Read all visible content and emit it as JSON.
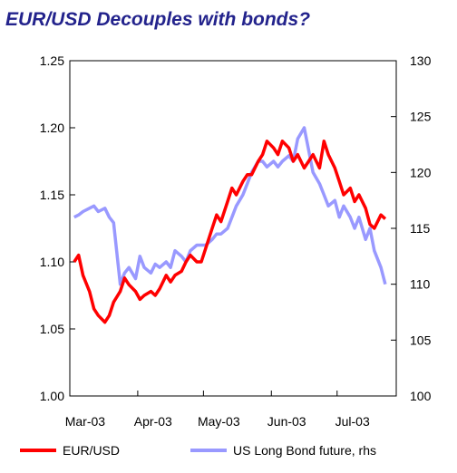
{
  "chart_data": {
    "type": "line",
    "title": "EUR/USD Decouples with bonds?",
    "x_tick_labels": [
      "Mar-03",
      "Apr-03",
      "May-03",
      "Jun-03",
      "Jul-03"
    ],
    "y_left": {
      "ylim": [
        1.0,
        1.25
      ],
      "ticks": [
        "1.00",
        "1.05",
        "1.10",
        "1.15",
        "1.20",
        "1.25"
      ]
    },
    "y_right": {
      "ylim": [
        100,
        130
      ],
      "ticks": [
        "100",
        "105",
        "110",
        "115",
        "120",
        "125",
        "130"
      ]
    },
    "grid": false,
    "legend_position": "bottom",
    "series": [
      {
        "name": "EUR/USD",
        "axis": "left",
        "color": "#ff0000",
        "x": [
          "2003-03-03",
          "2003-03-05",
          "2003-03-07",
          "2003-03-10",
          "2003-03-12",
          "2003-03-14",
          "2003-03-17",
          "2003-03-19",
          "2003-03-21",
          "2003-03-24",
          "2003-03-26",
          "2003-03-28",
          "2003-03-31",
          "2003-04-02",
          "2003-04-04",
          "2003-04-07",
          "2003-04-09",
          "2003-04-11",
          "2003-04-14",
          "2003-04-16",
          "2003-04-18",
          "2003-04-21",
          "2003-04-23",
          "2003-04-25",
          "2003-04-28",
          "2003-04-30",
          "2003-05-02",
          "2003-05-05",
          "2003-05-07",
          "2003-05-09",
          "2003-05-12",
          "2003-05-14",
          "2003-05-16",
          "2003-05-19",
          "2003-05-21",
          "2003-05-23",
          "2003-05-26",
          "2003-05-28",
          "2003-05-30",
          "2003-06-02",
          "2003-06-04",
          "2003-06-06",
          "2003-06-09",
          "2003-06-11",
          "2003-06-13",
          "2003-06-16",
          "2003-06-18",
          "2003-06-20",
          "2003-06-23",
          "2003-06-25",
          "2003-06-27",
          "2003-06-30",
          "2003-07-02",
          "2003-07-04",
          "2003-07-07",
          "2003-07-09",
          "2003-07-11",
          "2003-07-14",
          "2003-07-16",
          "2003-07-18",
          "2003-07-21",
          "2003-07-23"
        ],
        "values": [
          1.1,
          1.105,
          1.09,
          1.078,
          1.065,
          1.06,
          1.055,
          1.06,
          1.07,
          1.078,
          1.088,
          1.083,
          1.078,
          1.072,
          1.075,
          1.078,
          1.075,
          1.08,
          1.09,
          1.085,
          1.09,
          1.093,
          1.1,
          1.105,
          1.1,
          1.1,
          1.11,
          1.125,
          1.135,
          1.13,
          1.145,
          1.155,
          1.15,
          1.16,
          1.165,
          1.165,
          1.175,
          1.18,
          1.19,
          1.185,
          1.18,
          1.19,
          1.185,
          1.175,
          1.18,
          1.17,
          1.175,
          1.18,
          1.17,
          1.19,
          1.18,
          1.17,
          1.16,
          1.15,
          1.155,
          1.145,
          1.15,
          1.14,
          1.128,
          1.125,
          1.135,
          1.132
        ]
      },
      {
        "name": "US Long Bond future, rhs",
        "axis": "right",
        "color": "#9999ff",
        "x": [
          "2003-03-03",
          "2003-03-05",
          "2003-03-07",
          "2003-03-10",
          "2003-03-12",
          "2003-03-14",
          "2003-03-17",
          "2003-03-19",
          "2003-03-21",
          "2003-03-24",
          "2003-03-26",
          "2003-03-28",
          "2003-03-31",
          "2003-04-02",
          "2003-04-04",
          "2003-04-07",
          "2003-04-09",
          "2003-04-11",
          "2003-04-14",
          "2003-04-16",
          "2003-04-18",
          "2003-04-21",
          "2003-04-23",
          "2003-04-25",
          "2003-04-28",
          "2003-04-30",
          "2003-05-02",
          "2003-05-05",
          "2003-05-07",
          "2003-05-09",
          "2003-05-12",
          "2003-05-14",
          "2003-05-16",
          "2003-05-19",
          "2003-05-21",
          "2003-05-23",
          "2003-05-26",
          "2003-05-28",
          "2003-05-30",
          "2003-06-02",
          "2003-06-04",
          "2003-06-06",
          "2003-06-09",
          "2003-06-11",
          "2003-06-13",
          "2003-06-16",
          "2003-06-18",
          "2003-06-20",
          "2003-06-23",
          "2003-06-25",
          "2003-06-27",
          "2003-06-30",
          "2003-07-02",
          "2003-07-04",
          "2003-07-07",
          "2003-07-09",
          "2003-07-11",
          "2003-07-14",
          "2003-07-16",
          "2003-07-18",
          "2003-07-21",
          "2003-07-23"
        ],
        "values": [
          116,
          116.2,
          116.5,
          116.8,
          117,
          116.5,
          116.8,
          116,
          115.5,
          110,
          111,
          111.5,
          110.5,
          112.5,
          111.5,
          111,
          111.8,
          111.5,
          112,
          111.5,
          113,
          112.5,
          112,
          113,
          113.5,
          113.5,
          113.5,
          114,
          114.5,
          114.5,
          115,
          116,
          117,
          118,
          119,
          120,
          121,
          121,
          120.5,
          121,
          120.5,
          121,
          121.5,
          121,
          123,
          124,
          122,
          120,
          119,
          118,
          117,
          117.5,
          116,
          117,
          116,
          115,
          116,
          114,
          115,
          113,
          111.5,
          110
        ]
      }
    ]
  },
  "legend": {
    "items": [
      {
        "label": "EUR/USD",
        "color": "#ff0000"
      },
      {
        "label": "US Long Bond future, rhs",
        "color": "#9999ff"
      }
    ]
  }
}
